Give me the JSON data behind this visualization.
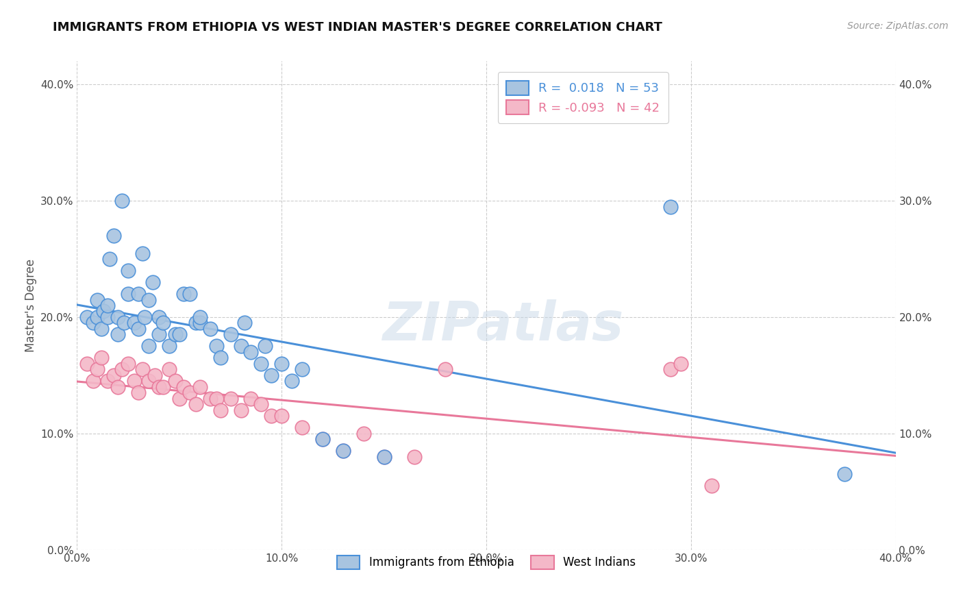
{
  "title": "IMMIGRANTS FROM ETHIOPIA VS WEST INDIAN MASTER'S DEGREE CORRELATION CHART",
  "source": "Source: ZipAtlas.com",
  "xlabel": "",
  "ylabel": "Master's Degree",
  "watermark": "ZIPatlas",
  "legend_ethiopia": "Immigrants from Ethiopia",
  "legend_westindian": "West Indians",
  "r_ethiopia": 0.018,
  "n_ethiopia": 53,
  "r_westindian": -0.093,
  "n_westindian": 42,
  "xlim": [
    0.0,
    0.4
  ],
  "ylim": [
    0.0,
    0.42
  ],
  "yticks": [
    0.0,
    0.1,
    0.2,
    0.3,
    0.4
  ],
  "xticks": [
    0.0,
    0.1,
    0.2,
    0.3,
    0.4
  ],
  "color_ethiopia": "#a8c4e0",
  "color_westindian": "#f4b8c8",
  "line_color_ethiopia": "#4a90d9",
  "line_color_westindian": "#e8789a",
  "background_color": "#ffffff",
  "grid_color": "#cccccc",
  "ethiopia_x": [
    0.005,
    0.008,
    0.01,
    0.01,
    0.012,
    0.013,
    0.015,
    0.015,
    0.016,
    0.018,
    0.02,
    0.02,
    0.022,
    0.023,
    0.025,
    0.025,
    0.028,
    0.03,
    0.03,
    0.032,
    0.033,
    0.035,
    0.035,
    0.037,
    0.04,
    0.04,
    0.042,
    0.045,
    0.048,
    0.05,
    0.052,
    0.055,
    0.058,
    0.06,
    0.06,
    0.065,
    0.068,
    0.07,
    0.075,
    0.08,
    0.082,
    0.085,
    0.09,
    0.092,
    0.095,
    0.1,
    0.105,
    0.11,
    0.12,
    0.13,
    0.15,
    0.29,
    0.375
  ],
  "ethiopia_y": [
    0.2,
    0.195,
    0.2,
    0.215,
    0.19,
    0.205,
    0.2,
    0.21,
    0.25,
    0.27,
    0.185,
    0.2,
    0.3,
    0.195,
    0.22,
    0.24,
    0.195,
    0.19,
    0.22,
    0.255,
    0.2,
    0.175,
    0.215,
    0.23,
    0.185,
    0.2,
    0.195,
    0.175,
    0.185,
    0.185,
    0.22,
    0.22,
    0.195,
    0.195,
    0.2,
    0.19,
    0.175,
    0.165,
    0.185,
    0.175,
    0.195,
    0.17,
    0.16,
    0.175,
    0.15,
    0.16,
    0.145,
    0.155,
    0.095,
    0.085,
    0.08,
    0.295,
    0.065
  ],
  "westindian_x": [
    0.005,
    0.008,
    0.01,
    0.012,
    0.015,
    0.018,
    0.02,
    0.022,
    0.025,
    0.028,
    0.03,
    0.032,
    0.035,
    0.038,
    0.04,
    0.042,
    0.045,
    0.048,
    0.05,
    0.052,
    0.055,
    0.058,
    0.06,
    0.065,
    0.068,
    0.07,
    0.075,
    0.08,
    0.085,
    0.09,
    0.095,
    0.1,
    0.11,
    0.12,
    0.13,
    0.14,
    0.15,
    0.165,
    0.18,
    0.29,
    0.295,
    0.31
  ],
  "westindian_y": [
    0.16,
    0.145,
    0.155,
    0.165,
    0.145,
    0.15,
    0.14,
    0.155,
    0.16,
    0.145,
    0.135,
    0.155,
    0.145,
    0.15,
    0.14,
    0.14,
    0.155,
    0.145,
    0.13,
    0.14,
    0.135,
    0.125,
    0.14,
    0.13,
    0.13,
    0.12,
    0.13,
    0.12,
    0.13,
    0.125,
    0.115,
    0.115,
    0.105,
    0.095,
    0.085,
    0.1,
    0.08,
    0.08,
    0.155,
    0.155,
    0.16,
    0.055
  ]
}
